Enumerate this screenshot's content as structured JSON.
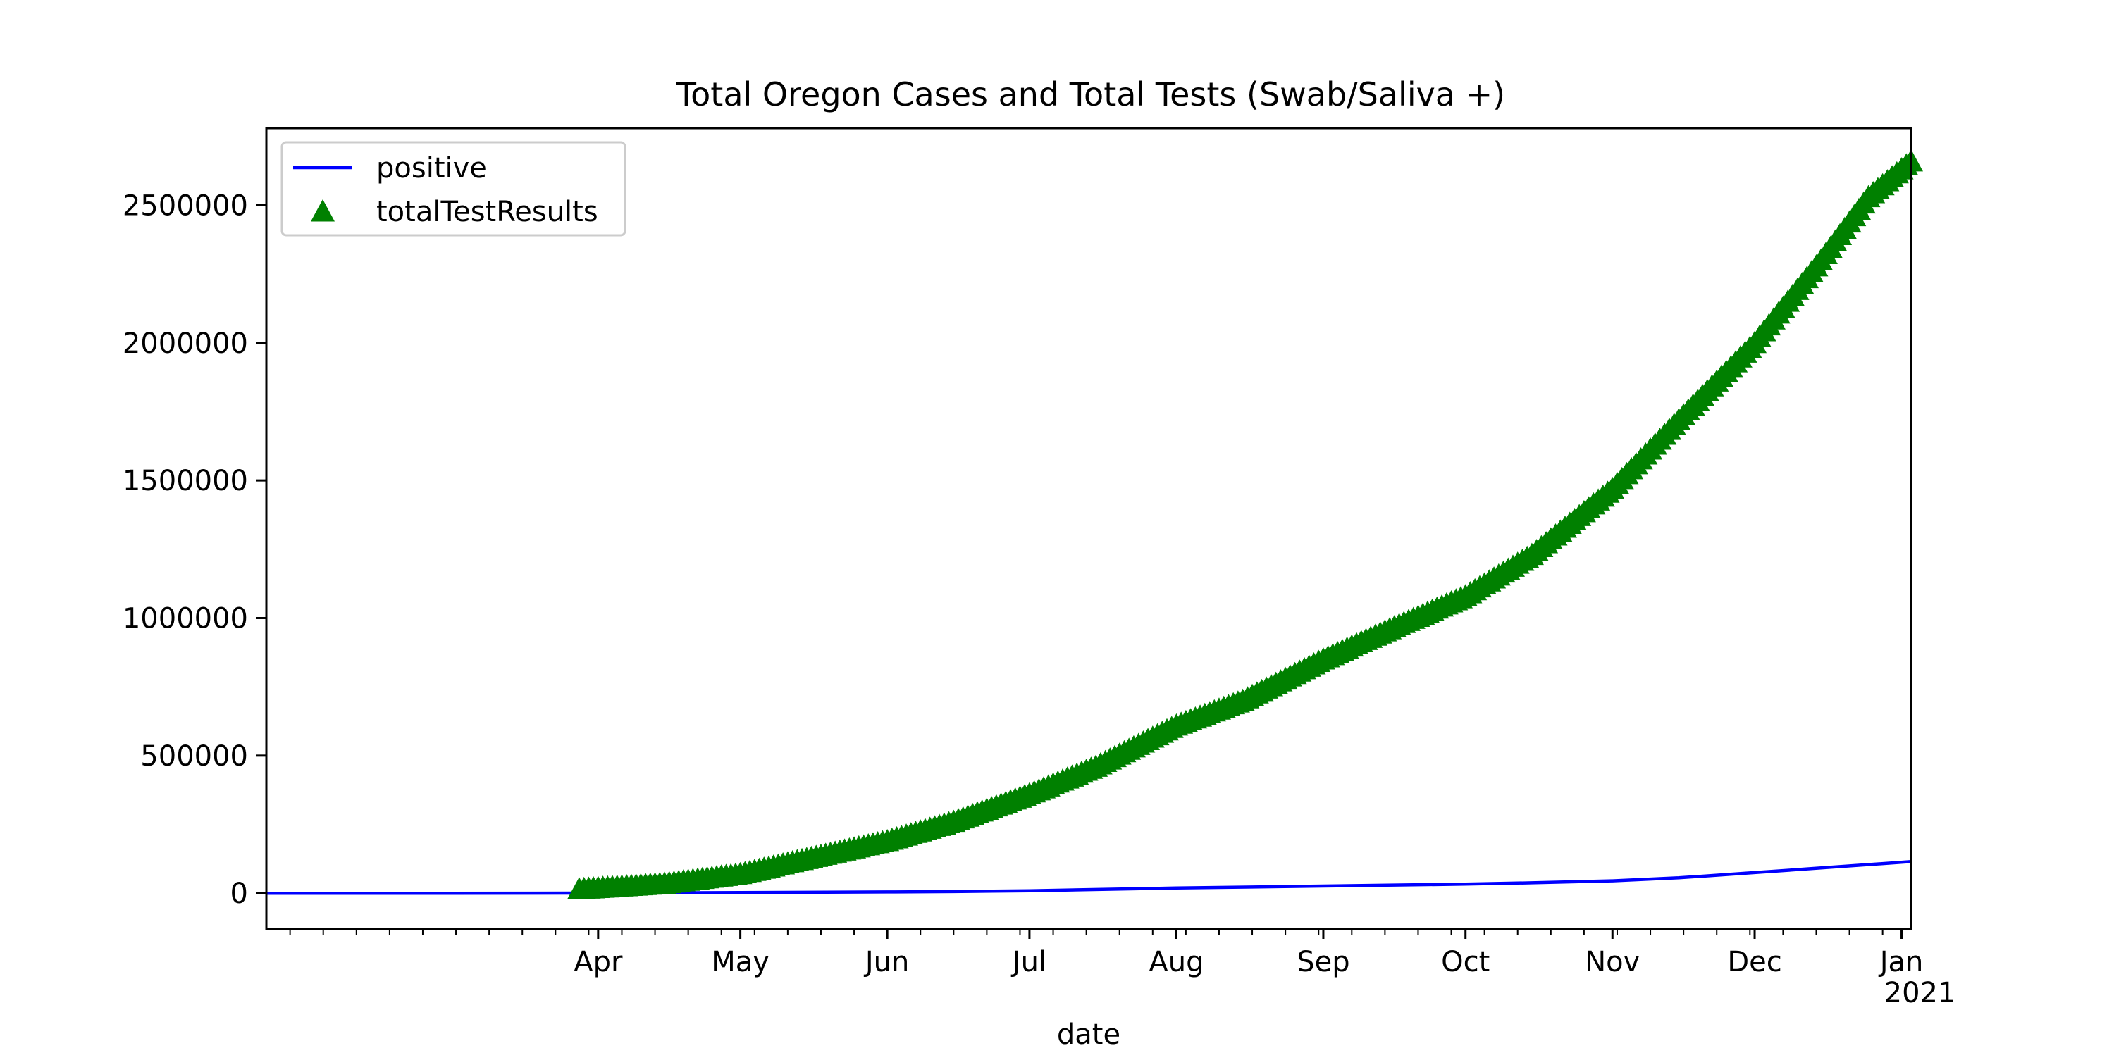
{
  "chart_data": {
    "type": "line",
    "title": "Total Oregon Cases and Total Tests (Swab/Saliva +)",
    "xlabel": "date",
    "ylabel": "",
    "x_range": [
      "2020-01-22",
      "2021-01-03"
    ],
    "ylim": [
      -130000,
      2780000
    ],
    "yticks": [
      0,
      500000,
      1000000,
      1500000,
      2000000,
      2500000
    ],
    "ytick_labels": [
      "0",
      "500000",
      "1000000",
      "1500000",
      "2000000",
      "2500000"
    ],
    "xticks": [
      {
        "date": "2020-04-01",
        "label": "Apr",
        "sublabel": ""
      },
      {
        "date": "2020-05-01",
        "label": "May",
        "sublabel": ""
      },
      {
        "date": "2020-06-01",
        "label": "Jun",
        "sublabel": ""
      },
      {
        "date": "2020-07-01",
        "label": "Jul",
        "sublabel": ""
      },
      {
        "date": "2020-08-01",
        "label": "Aug",
        "sublabel": ""
      },
      {
        "date": "2020-09-01",
        "label": "Sep",
        "sublabel": ""
      },
      {
        "date": "2020-10-01",
        "label": "Oct",
        "sublabel": ""
      },
      {
        "date": "2020-11-01",
        "label": "Nov",
        "sublabel": ""
      },
      {
        "date": "2020-12-01",
        "label": "Dec",
        "sublabel": ""
      },
      {
        "date": "2021-01-01",
        "label": "Jan",
        "sublabel": "2021"
      }
    ],
    "grid": false,
    "legend_position": "upper-left",
    "series": [
      {
        "name": "positive",
        "style": "line",
        "color": "#0000ff",
        "points": [
          [
            "2020-01-22",
            0
          ],
          [
            "2020-03-01",
            0
          ],
          [
            "2020-03-28",
            400
          ],
          [
            "2020-04-15",
            1600
          ],
          [
            "2020-05-01",
            2600
          ],
          [
            "2020-06-01",
            4700
          ],
          [
            "2020-06-15",
            6000
          ],
          [
            "2020-07-01",
            9000
          ],
          [
            "2020-08-01",
            19000
          ],
          [
            "2020-09-01",
            26000
          ],
          [
            "2020-10-01",
            33000
          ],
          [
            "2020-10-15",
            38000
          ],
          [
            "2020-11-01",
            45000
          ],
          [
            "2020-11-15",
            56000
          ],
          [
            "2020-12-01",
            75000
          ],
          [
            "2020-12-15",
            92000
          ],
          [
            "2021-01-03",
            115000
          ]
        ]
      },
      {
        "name": "totalTestResults",
        "style": "triangle-markers",
        "color": "#008000",
        "points": [
          [
            "2020-03-28",
            15000
          ],
          [
            "2020-04-15",
            35000
          ],
          [
            "2020-05-01",
            70000
          ],
          [
            "2020-05-15",
            125000
          ],
          [
            "2020-06-01",
            190000
          ],
          [
            "2020-06-15",
            260000
          ],
          [
            "2020-07-01",
            360000
          ],
          [
            "2020-07-15",
            460000
          ],
          [
            "2020-08-01",
            610000
          ],
          [
            "2020-08-15",
            700000
          ],
          [
            "2020-09-01",
            850000
          ],
          [
            "2020-09-15",
            960000
          ],
          [
            "2020-10-01",
            1080000
          ],
          [
            "2020-10-15",
            1230000
          ],
          [
            "2020-11-01",
            1470000
          ],
          [
            "2020-11-15",
            1720000
          ],
          [
            "2020-12-01",
            2000000
          ],
          [
            "2020-12-15",
            2300000
          ],
          [
            "2020-12-25",
            2530000
          ],
          [
            "2021-01-03",
            2660000
          ]
        ]
      }
    ]
  }
}
